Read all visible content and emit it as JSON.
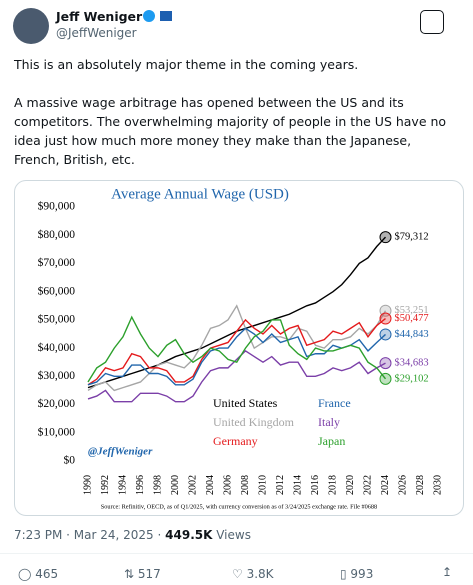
{
  "tweet": {
    "name": "Jeff Weniger",
    "handle": "@JeffWeniger",
    "paragraphs": [
      "This is an absolutely major theme in the coming years.",
      "A massive wage arbitrage has opened between the US and its competitors. The overwhelming majority of people in the US have no idea just how much more money they make than the Japanese, French, British, etc."
    ],
    "time": "7:23 PM · Mar 24, 2025",
    "views": "449.5K",
    "views_label": "Views",
    "replies": "465",
    "reposts": "517",
    "likes": "3.8K",
    "bookmarks": "993"
  },
  "chart_data": {
    "type": "line",
    "title": "Average Annual Wage (USD)",
    "watermark": "@JeffWeniger",
    "source": "Source: Refinitiv, OECD, as of Q1/2025, with currency conversion as of 3/24/2025 exchange rate. File #0688",
    "x": [
      1990,
      1991,
      1992,
      1993,
      1994,
      1995,
      1996,
      1997,
      1998,
      1999,
      2000,
      2001,
      2002,
      2003,
      2004,
      2005,
      2006,
      2007,
      2008,
      2009,
      2010,
      2011,
      2012,
      2013,
      2014,
      2015,
      2016,
      2017,
      2018,
      2019,
      2020,
      2021,
      2022,
      2023,
      2024
    ],
    "xlim": [
      1990,
      2030
    ],
    "xticks": [
      1990,
      1992,
      1994,
      1996,
      1998,
      2000,
      2002,
      2004,
      2006,
      2008,
      2010,
      2012,
      2014,
      2016,
      2018,
      2020,
      2022,
      2024,
      2026,
      2028,
      2030
    ],
    "ylim": [
      0,
      90000
    ],
    "yticks": [
      {
        "value": 0,
        "label": "$0"
      },
      {
        "value": 10000,
        "label": "$10,000"
      },
      {
        "value": 20000,
        "label": "$20,000"
      },
      {
        "value": 30000,
        "label": "$30,000"
      },
      {
        "value": 40000,
        "label": "$40,000"
      },
      {
        "value": 50000,
        "label": "$50,000"
      },
      {
        "value": 60000,
        "label": "$60,000"
      },
      {
        "value": 70000,
        "label": "$70,000"
      },
      {
        "value": 80000,
        "label": "$80,000"
      },
      {
        "value": 90000,
        "label": "$90,000"
      }
    ],
    "series": [
      {
        "name": "United States",
        "color": "#000000",
        "end_label": "$79,312",
        "values": [
          26000,
          27000,
          28000,
          29000,
          30000,
          31000,
          32000,
          33000,
          34000,
          35500,
          37000,
          38000,
          39000,
          40000,
          41500,
          43000,
          44500,
          46000,
          47000,
          48000,
          49000,
          50000,
          51000,
          52000,
          53500,
          55000,
          56000,
          58000,
          60000,
          62500,
          66000,
          70000,
          72000,
          76000,
          79312
        ]
      },
      {
        "name": "United Kingdom",
        "color": "#a6a6a6",
        "end_label": "$53,251",
        "values": [
          25000,
          27000,
          28000,
          25000,
          26000,
          27000,
          28000,
          31000,
          34000,
          35000,
          34000,
          33000,
          36000,
          41000,
          47000,
          48000,
          50000,
          55000,
          47000,
          40000,
          42000,
          44000,
          44000,
          43000,
          47000,
          46000,
          41000,
          40000,
          43000,
          43000,
          44000,
          47000,
          45000,
          48000,
          53251
        ]
      },
      {
        "name": "Germany",
        "color": "#e41a1c",
        "end_label": "$50,477",
        "values": [
          27000,
          29000,
          33000,
          32000,
          33000,
          38000,
          37000,
          33000,
          33000,
          32000,
          28000,
          28000,
          30000,
          36000,
          40000,
          41000,
          42000,
          46000,
          50000,
          47000,
          45000,
          48000,
          45000,
          47000,
          48000,
          41000,
          42000,
          43000,
          46000,
          45000,
          47000,
          49000,
          44000,
          48000,
          50477
        ]
      },
      {
        "name": "France",
        "color": "#2166ac",
        "end_label": "$44,843",
        "values": [
          27000,
          28000,
          31000,
          30000,
          30000,
          34000,
          34000,
          31000,
          31000,
          30000,
          27000,
          27000,
          29000,
          35000,
          39000,
          40000,
          40000,
          44000,
          47000,
          45000,
          42000,
          45000,
          42000,
          43000,
          44000,
          37000,
          38000,
          38000,
          41000,
          40000,
          41000,
          43000,
          39000,
          42000,
          44843
        ]
      },
      {
        "name": "Italy",
        "color": "#7b3fa8",
        "end_label": "$34,683",
        "values": [
          22000,
          23000,
          25000,
          21000,
          21000,
          21000,
          24000,
          24000,
          24000,
          23000,
          21000,
          21000,
          23000,
          28000,
          32000,
          33000,
          33000,
          36000,
          39000,
          37000,
          35000,
          37000,
          34000,
          35000,
          35000,
          30000,
          30000,
          31000,
          33000,
          32000,
          33000,
          35000,
          31000,
          33000,
          34683
        ]
      },
      {
        "name": "Japan",
        "color": "#2ca02c",
        "end_label": "$29,102",
        "values": [
          28000,
          33000,
          35000,
          40000,
          44000,
          51000,
          45000,
          40000,
          37000,
          41000,
          43000,
          38000,
          35000,
          37000,
          40000,
          39000,
          36000,
          35000,
          40000,
          44000,
          46000,
          50000,
          50000,
          41000,
          38000,
          36000,
          40000,
          39000,
          39000,
          40000,
          41000,
          40000,
          35000,
          33000,
          29102
        ]
      }
    ]
  }
}
